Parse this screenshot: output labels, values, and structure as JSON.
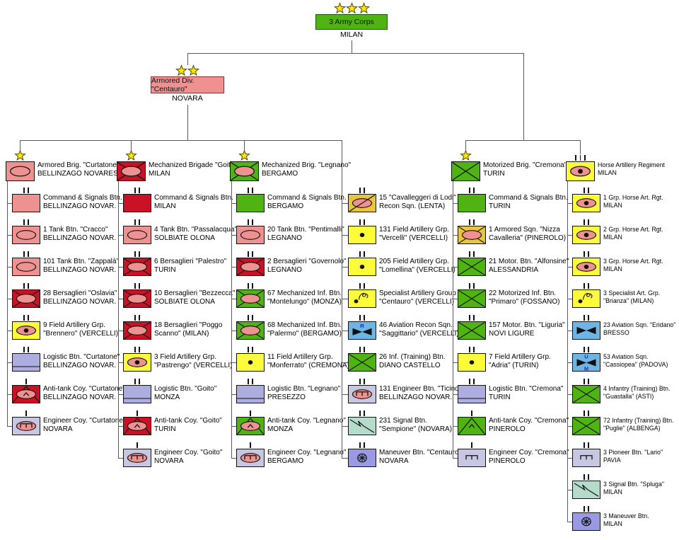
{
  "colors": {
    "green": "#4fb312",
    "crimson": "#cb1126",
    "pink": "#ee9191",
    "yellow": "#fcfc3a",
    "gold": "#e9c53e",
    "blue": "#6cb5e4",
    "lavender": "#adade0",
    "paleLavender": "#c7c7e4",
    "mint": "#b5dccb",
    "periwinkle": "#9a9ae4",
    "star": "#ffe600",
    "line": "#5a5a5a",
    "ink": "#101010",
    "corpsBorder": "#1d5a05",
    "divBorder": "#8b2b2b",
    "letterBlue": "#1c2fb0"
  },
  "diagram": {
    "root": {
      "name": "3 Army Corps",
      "location": "MILAN",
      "stars": 3,
      "bg": "green"
    },
    "division": {
      "name": "Armored Div. \"Centauro\"",
      "location": "NOVARA",
      "stars": 2,
      "bg": "pink"
    },
    "columns": [
      {
        "header": {
          "lines": [
            "Armored Brig. \"Curtatone\"",
            "BELLINZAGO NOVARESE"
          ],
          "size": "star",
          "bg": "pink",
          "sym": [
            "ell"
          ]
        },
        "units": [
          {
            "lines": [
              "Command & Signals Btn.",
              "BELLINZAGO NOVAR."
            ],
            "size": "II",
            "bg": "pink",
            "sym": []
          },
          {
            "lines": [
              "1 Tank Btn. \"Cracco\"",
              "BELLINZAGO NOVAR."
            ],
            "size": "II",
            "bg": "pink",
            "sym": [
              "ell"
            ]
          },
          {
            "lines": [
              "101 Tank Btn. \"Zappalà\"",
              "BELLINZAGO NOVAR."
            ],
            "size": "II",
            "bg": "pink",
            "sym": [
              "ell"
            ]
          },
          {
            "lines": [
              "28 Bersaglieri \"Oslavia\"",
              "BELLINZAGO NOVAR."
            ],
            "size": "II",
            "bg": "crimson",
            "sym": [
              "x",
              "ellp"
            ]
          },
          {
            "lines": [
              "9 Field Artillery Grp.",
              "\"Brennero\" (VERCELLI)"
            ],
            "size": "II",
            "bg": "yellow",
            "sym": [
              "ellp",
              "dot"
            ]
          },
          {
            "lines": [
              "Logistic Btn. \"Curtatone\"",
              "BELLINZAGO NOVAR."
            ],
            "size": "II",
            "bg": "lavender",
            "sym": [
              "log"
            ]
          },
          {
            "lines": [
              "Anti-tank Coy. \"Curtatone\"",
              "BELLINZAGO NOVAR."
            ],
            "size": "I",
            "bg": "crimson",
            "sym": [
              "at",
              "ellp",
              "chev"
            ]
          },
          {
            "lines": [
              "Engineer Coy. \"Curtatone\"",
              "NOVARA"
            ],
            "size": "I",
            "bg": "paleLavender",
            "sym": [
              "ellp",
              "eng"
            ]
          }
        ]
      },
      {
        "header": {
          "lines": [
            "Mechanized Brigade \"Goito\"",
            "MILAN"
          ],
          "size": "star",
          "bg": "crimson",
          "sym": [
            "x",
            "ellp"
          ]
        },
        "units": [
          {
            "lines": [
              "Command & Signals Btn.",
              "MILAN"
            ],
            "size": "II",
            "bg": "crimson",
            "sym": []
          },
          {
            "lines": [
              "4 Tank Btn. \"Passalacqua\"",
              "SOLBIATE OLONA"
            ],
            "size": "II",
            "bg": "pink",
            "sym": [
              "ell"
            ]
          },
          {
            "lines": [
              "6 Bersaglieri \"Palestro\"",
              "TURIN"
            ],
            "size": "II",
            "bg": "crimson",
            "sym": [
              "x",
              "ellp"
            ]
          },
          {
            "lines": [
              "10 Bersaglieri \"Bezzecca\"",
              "SOLBIATE OLONA"
            ],
            "size": "II",
            "bg": "crimson",
            "sym": [
              "x",
              "ellp"
            ]
          },
          {
            "lines": [
              "18 Bersaglieri \"Poggo",
              "Scanno\" (MILAN)"
            ],
            "size": "II",
            "bg": "crimson",
            "sym": [
              "x",
              "ellp"
            ]
          },
          {
            "lines": [
              "3 Field Artillery Grp.",
              "\"Pastrengo\" (VERCELLI)"
            ],
            "size": "II",
            "bg": "yellow",
            "sym": [
              "ellp",
              "dot"
            ]
          },
          {
            "lines": [
              "Logistic Btn. \"Goito\"",
              "MONZA"
            ],
            "size": "II",
            "bg": "lavender",
            "sym": [
              "log"
            ]
          },
          {
            "lines": [
              "Anti-tank Coy. \"Goito\"",
              "TURIN"
            ],
            "size": "I",
            "bg": "crimson",
            "sym": [
              "at",
              "ellp",
              "chev"
            ]
          },
          {
            "lines": [
              "Engineer Coy. \"Goito\"",
              "NOVARA"
            ],
            "size": "I",
            "bg": "paleLavender",
            "sym": [
              "ellp",
              "eng"
            ]
          }
        ]
      },
      {
        "header": {
          "lines": [
            "Mechanized Brig. \"Legnano\"",
            "BERGAMO"
          ],
          "size": "star",
          "bg": "green",
          "sym": [
            "x",
            "ellp"
          ]
        },
        "units": [
          {
            "lines": [
              "Command & Signals Btn.",
              "BERGAMO"
            ],
            "size": "II",
            "bg": "green",
            "sym": []
          },
          {
            "lines": [
              "20 Tank Btn. \"Pentimalli\"",
              "LEGNANO"
            ],
            "size": "II",
            "bg": "pink",
            "sym": [
              "ell"
            ]
          },
          {
            "lines": [
              "2 Bersaglieri \"Governolo\"",
              "LEGNANO"
            ],
            "size": "II",
            "bg": "crimson",
            "sym": [
              "x",
              "ellp"
            ]
          },
          {
            "lines": [
              "67 Mechanized Inf. Btn.",
              "\"Montelungo\" (MONZA)"
            ],
            "size": "II",
            "bg": "green",
            "sym": [
              "x",
              "ellp"
            ]
          },
          {
            "lines": [
              "68 Mechanized Inf. Btn.",
              "\"Palermo\" (BERGAMO)"
            ],
            "size": "II",
            "bg": "green",
            "sym": [
              "x",
              "ellp"
            ]
          },
          {
            "lines": [
              "11 Field Artillery Grp.",
              "\"Monferrato\" (CREMONA)"
            ],
            "size": "II",
            "bg": "yellow",
            "sym": [
              "dot"
            ]
          },
          {
            "lines": [
              "Logistic Btn. \"Legnano\"",
              "PRESEZZO"
            ],
            "size": "II",
            "bg": "lavender",
            "sym": [
              "log"
            ]
          },
          {
            "lines": [
              "Anti-tank Coy. \"Legnano\"",
              "MONZA"
            ],
            "size": "I",
            "bg": "green",
            "sym": [
              "at",
              "ellp",
              "chev"
            ]
          },
          {
            "lines": [
              "Engineer Coy. \"Legnano\"",
              "BERGAMO"
            ],
            "size": "I",
            "bg": "paleLavender",
            "sym": [
              "ellp",
              "eng"
            ]
          }
        ]
      },
      {
        "header": null,
        "units": [
          {
            "lines": [
              "15 \"Cavalleggeri di Lodi\"",
              "Recon Sqn. (LENTA)"
            ],
            "size": "II",
            "bg": "gold",
            "sym": [
              "ellp",
              "slash"
            ]
          },
          {
            "lines": [
              "131 Field Artillery Grp.",
              "\"Vercelli\" (VERCELLI)"
            ],
            "size": "II",
            "bg": "yellow",
            "sym": [
              "dot"
            ]
          },
          {
            "lines": [
              "205 Field Artillery Grp.",
              "\"Lomellina\" (VERCELLI)"
            ],
            "size": "II",
            "bg": "yellow",
            "sym": [
              "dot"
            ]
          },
          {
            "lines": [
              "Specialist Artillery Group",
              "\"Centauro\" (VERCELLI)"
            ],
            "size": "II",
            "bg": "yellow",
            "sym": [
              "dotll",
              "squig"
            ]
          },
          {
            "lines": [
              "46 Aviation Recon Sqn.",
              "\"Saggittario\" (VERCELLI)"
            ],
            "size": "II",
            "bg": "blue",
            "sym": [
              "bowtie",
              "lblR"
            ]
          },
          {
            "lines": [
              "26 Inf. (Training) Btn.",
              "DIANO CASTELLO"
            ],
            "size": "II",
            "bg": "green",
            "sym": [
              "x"
            ]
          },
          {
            "lines": [
              "131 Engineer Btn. \"Ticino\"",
              "BELLINZAGO NOVAR."
            ],
            "size": "II",
            "bg": "paleLavender",
            "sym": [
              "ellp",
              "eng"
            ]
          },
          {
            "lines": [
              "231 Signal Btn.",
              "\"Sempione\" (NOVARA)"
            ],
            "size": "II",
            "bg": "mint",
            "sym": [
              "flash"
            ]
          },
          {
            "lines": [
              "Maneuver Btn. \"Centauro\"",
              "NOVARA"
            ],
            "size": "II",
            "bg": "periwinkle",
            "sym": [
              "man"
            ]
          }
        ]
      },
      {
        "header": {
          "lines": [
            "Motorized Brig. \"Cremona\"",
            "TURIN"
          ],
          "size": "star",
          "bg": "green",
          "sym": [
            "x"
          ]
        },
        "units": [
          {
            "lines": [
              "Command & Signals Btn.",
              "TURIN"
            ],
            "size": "II",
            "bg": "green",
            "sym": []
          },
          {
            "lines": [
              "1 Armored Sqn. \"Nizza",
              "Cavalleria\" (PINEROLO)"
            ],
            "size": "II",
            "bg": "gold",
            "sym": [
              "x",
              "ellp"
            ]
          },
          {
            "lines": [
              "21 Motor. Btn. \"Alfonsine\"",
              "ALESSANDRIA"
            ],
            "size": "II",
            "bg": "green",
            "sym": [
              "x"
            ]
          },
          {
            "lines": [
              "22 Motorized Inf. Btn.",
              "\"Primaro\" (FOSSANO)"
            ],
            "size": "II",
            "bg": "green",
            "sym": [
              "x"
            ]
          },
          {
            "lines": [
              "157 Motor. Btn. \"Liguria\"",
              "NOVI LIGURE"
            ],
            "size": "II",
            "bg": "green",
            "sym": [
              "x"
            ]
          },
          {
            "lines": [
              "7 Field Artillery Grp.",
              "\"Adria\" (TURIN)"
            ],
            "size": "II",
            "bg": "yellow",
            "sym": [
              "dot"
            ]
          },
          {
            "lines": [
              "Logistic Btn. \"Cremona\"",
              "TURIN"
            ],
            "size": "II",
            "bg": "lavender",
            "sym": [
              "log"
            ]
          },
          {
            "lines": [
              "Anti-tank Coy. \"Cremona\"",
              "PINEROLO"
            ],
            "size": "I",
            "bg": "green",
            "sym": [
              "at",
              "chev"
            ]
          },
          {
            "lines": [
              "Engineer Coy. \"Cremona\"",
              "PINEROLO"
            ],
            "size": "I",
            "bg": "paleLavender",
            "sym": [
              "eng"
            ]
          }
        ]
      },
      {
        "header": {
          "lines": [
            "Horse Artillery Regiment",
            "MILAN"
          ],
          "size": "III",
          "bg": "yellow",
          "sym": [
            "ellp",
            "dot"
          ]
        },
        "units": [
          {
            "lines": [
              "1 Grp. Horse Art. Rgt.",
              "MILAN"
            ],
            "size": "II",
            "bg": "yellow",
            "sym": [
              "ellp",
              "dot"
            ]
          },
          {
            "lines": [
              "2 Grp. Horse Art. Rgt.",
              "MILAN"
            ],
            "size": "II",
            "bg": "yellow",
            "sym": [
              "ellp",
              "dot"
            ]
          },
          {
            "lines": [
              "3 Grp. Horse Art. Rgt.",
              "MILAN"
            ],
            "size": "II",
            "bg": "yellow",
            "sym": [
              "ellp",
              "dot"
            ]
          },
          {
            "lines": [
              "3 Specialist Art. Grp.",
              "\"Brianza\" (MILAN)"
            ],
            "size": "II",
            "bg": "yellow",
            "sym": [
              "dotll",
              "squig"
            ]
          },
          {
            "lines": [
              "23 Aviation Sqn. \"Eridano\"",
              "BRESSO"
            ],
            "size": "II",
            "bg": "blue",
            "sym": [
              "bowtie"
            ]
          },
          {
            "lines": [
              "53 Aviation Sqn.",
              "\"Cassiopea\" (PADOVA)"
            ],
            "size": "II",
            "bg": "blue",
            "sym": [
              "bowtie",
              "lblU",
              "lblM"
            ]
          },
          {
            "lines": [
              "4 Infantry (Training) Btn.",
              "\"Guastalla\" (ASTI)"
            ],
            "size": "II",
            "bg": "green",
            "sym": [
              "x"
            ]
          },
          {
            "lines": [
              "72 Infantry (Training) Btn.",
              "\"Puglie\" (ALBENGA)"
            ],
            "size": "II",
            "bg": "green",
            "sym": [
              "x"
            ]
          },
          {
            "lines": [
              "3 Pioneer Btn. \"Lario\"",
              "PAVIA"
            ],
            "size": "II",
            "bg": "paleLavender",
            "sym": [
              "eng"
            ]
          },
          {
            "lines": [
              "3 Signal Btn. \"Spluga\"",
              "MILAN"
            ],
            "size": "II",
            "bg": "mint",
            "sym": [
              "flash"
            ]
          },
          {
            "lines": [
              "3 Maneuver Btn.",
              "MILAN"
            ],
            "size": "II",
            "bg": "periwinkle",
            "sym": [
              "man"
            ]
          }
        ]
      }
    ]
  }
}
